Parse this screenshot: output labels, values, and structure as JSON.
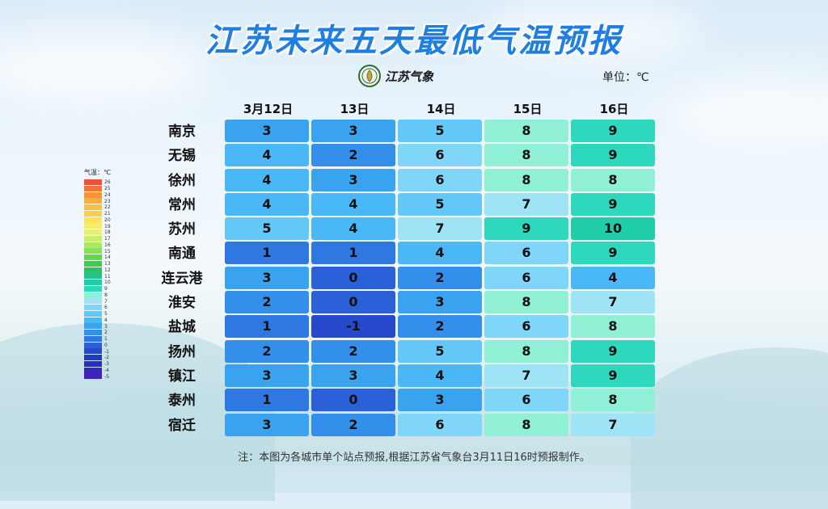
{
  "title": "江苏未来五天最低气温预报",
  "logo_text": "江苏气象",
  "unit": "单位：℃",
  "dates": [
    "3月12日",
    "13日",
    "14日",
    "15日",
    "16日"
  ],
  "cities": [
    "南京",
    "无锡",
    "徐州",
    "常州",
    "苏州",
    "南通",
    "连云港",
    "淮安",
    "盐城",
    "扬州",
    "镇江",
    "泰州",
    "宿迁"
  ],
  "chart_data": {
    "type": "table",
    "columns": [
      "3月12日",
      "13日",
      "14日",
      "15日",
      "16日"
    ],
    "rows": [
      {
        "city": "南京",
        "values": [
          3,
          3,
          5,
          8,
          9
        ]
      },
      {
        "city": "无锡",
        "values": [
          4,
          2,
          6,
          8,
          9
        ]
      },
      {
        "city": "徐州",
        "values": [
          4,
          3,
          6,
          8,
          8
        ]
      },
      {
        "city": "常州",
        "values": [
          4,
          4,
          5,
          7,
          9
        ]
      },
      {
        "city": "苏州",
        "values": [
          5,
          4,
          7,
          9,
          10
        ]
      },
      {
        "city": "南通",
        "values": [
          1,
          1,
          4,
          6,
          9
        ]
      },
      {
        "city": "连云港",
        "values": [
          3,
          0,
          2,
          6,
          4
        ]
      },
      {
        "city": "淮安",
        "values": [
          2,
          0,
          3,
          8,
          7
        ]
      },
      {
        "city": "盐城",
        "values": [
          1,
          -1,
          2,
          6,
          8
        ]
      },
      {
        "city": "扬州",
        "values": [
          2,
          2,
          5,
          8,
          9
        ]
      },
      {
        "city": "镇江",
        "values": [
          3,
          3,
          4,
          7,
          9
        ]
      },
      {
        "city": "泰州",
        "values": [
          1,
          0,
          3,
          6,
          8
        ]
      },
      {
        "city": "宿迁",
        "values": [
          3,
          2,
          6,
          8,
          7
        ]
      }
    ]
  },
  "legend": {
    "title": "气温：℃",
    "labels": [
      "26",
      "25",
      "24",
      "23",
      "22",
      "21",
      "20",
      "19",
      "18",
      "17",
      "16",
      "15",
      "14",
      "13",
      "12",
      "11",
      "10",
      "9",
      "8",
      "7",
      "6",
      "5",
      "4",
      "3",
      "2",
      "1",
      "0",
      "-1",
      "-2",
      "-3",
      "-4",
      "-5"
    ],
    "colors": [
      "#f0503c",
      "#f5733a",
      "#f89438",
      "#faac3c",
      "#fbc043",
      "#fcd04d",
      "#fde25c",
      "#f7ec6a",
      "#e4f078",
      "#c8ee6e",
      "#a8ea62",
      "#84e256",
      "#5fd84c",
      "#3ecc48",
      "#2dc26a",
      "#22c48e",
      "#1fcda8",
      "#2ed8bc",
      "#8ff0d6",
      "#9fe4f6",
      "#80d6f8",
      "#63c7f7",
      "#4ab7f6",
      "#39a3f0",
      "#348fea",
      "#2f78e2",
      "#2a60d8",
      "#2548cc",
      "#2338c4",
      "#2a2ebe",
      "#3626bc",
      "#4422b8"
    ]
  },
  "note": "注：本图为各城市单个站点预报,根据江苏省气象台3月11日16时预报制作。"
}
